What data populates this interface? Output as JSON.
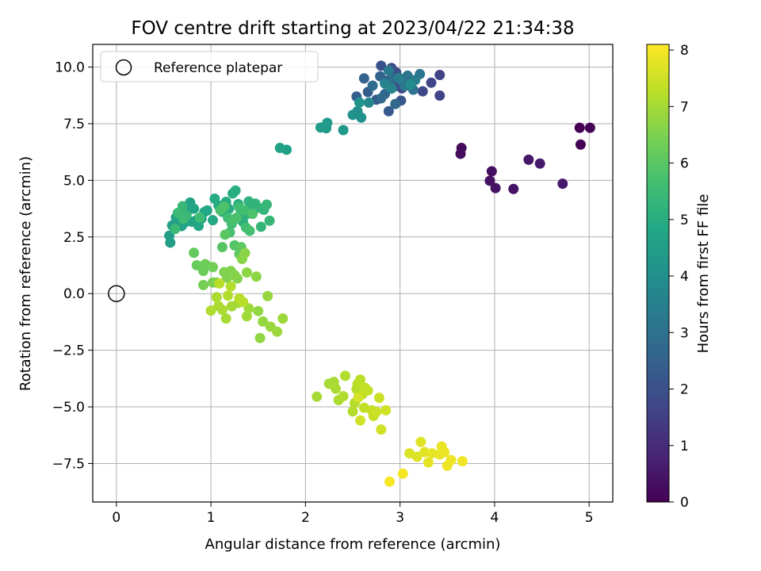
{
  "chart_data": {
    "type": "scatter",
    "title": "FOV centre drift starting at 2023/04/22 21:34:38",
    "xlabel": "Angular distance from reference (arcmin)",
    "ylabel": "Rotation from reference (arcmin)",
    "xlim": [
      -0.25,
      5.25
    ],
    "ylim": [
      -9.2,
      11.0
    ],
    "xticks": [
      0,
      1,
      2,
      3,
      4,
      5
    ],
    "yticks": [
      -7.5,
      -5.0,
      -2.5,
      0.0,
      2.5,
      5.0,
      7.5,
      10.0
    ],
    "xtick_labels": [
      "0",
      "1",
      "2",
      "3",
      "4",
      "5"
    ],
    "ytick_labels": [
      "−7.5",
      "−5.0",
      "−2.5",
      "0.0",
      "2.5",
      "5.0",
      "7.5",
      "10.0"
    ],
    "grid": true,
    "legend": {
      "placement": "upper-left",
      "entries": [
        "Reference platepar"
      ]
    },
    "colorbar": {
      "label": "Hours from first FF file",
      "colormap": "viridis",
      "range": [
        0,
        8.1
      ],
      "ticks": [
        0,
        1,
        2,
        3,
        4,
        5,
        6,
        7,
        8
      ],
      "tick_labels": [
        "0",
        "1",
        "2",
        "3",
        "4",
        "5",
        "6",
        "7",
        "8"
      ]
    },
    "reference": {
      "x": 0,
      "y": 0
    },
    "points": [
      {
        "x": 4.9,
        "y": 7.32,
        "t": 0.0
      },
      {
        "x": 5.01,
        "y": 7.32,
        "t": 0.02
      },
      {
        "x": 4.91,
        "y": 6.58,
        "t": 0.05
      },
      {
        "x": 3.65,
        "y": 6.43,
        "t": 0.25
      },
      {
        "x": 3.64,
        "y": 6.17,
        "t": 0.27
      },
      {
        "x": 3.97,
        "y": 5.4,
        "t": 0.35
      },
      {
        "x": 3.95,
        "y": 4.98,
        "t": 0.38
      },
      {
        "x": 4.01,
        "y": 4.66,
        "t": 0.4
      },
      {
        "x": 4.2,
        "y": 4.62,
        "t": 0.45
      },
      {
        "x": 4.36,
        "y": 5.91,
        "t": 0.5
      },
      {
        "x": 4.48,
        "y": 5.74,
        "t": 0.55
      },
      {
        "x": 4.72,
        "y": 4.85,
        "t": 0.6
      },
      {
        "x": 3.42,
        "y": 9.65,
        "t": 1.6
      },
      {
        "x": 3.42,
        "y": 8.74,
        "t": 1.65
      },
      {
        "x": 3.33,
        "y": 9.31,
        "t": 1.7
      },
      {
        "x": 3.24,
        "y": 8.93,
        "t": 1.75
      },
      {
        "x": 3.02,
        "y": 9.06,
        "t": 1.8
      },
      {
        "x": 2.96,
        "y": 9.76,
        "t": 1.85
      },
      {
        "x": 2.91,
        "y": 9.96,
        "t": 1.9
      },
      {
        "x": 2.8,
        "y": 10.06,
        "t": 2.0
      },
      {
        "x": 2.86,
        "y": 9.4,
        "t": 2.1
      },
      {
        "x": 2.94,
        "y": 9.15,
        "t": 2.15
      },
      {
        "x": 3.01,
        "y": 8.52,
        "t": 2.2
      },
      {
        "x": 2.88,
        "y": 8.05,
        "t": 2.25
      },
      {
        "x": 2.75,
        "y": 8.56,
        "t": 2.3
      },
      {
        "x": 2.66,
        "y": 8.9,
        "t": 2.35
      },
      {
        "x": 2.54,
        "y": 8.7,
        "t": 2.4
      },
      {
        "x": 2.62,
        "y": 9.5,
        "t": 2.5
      },
      {
        "x": 2.79,
        "y": 9.59,
        "t": 2.6
      },
      {
        "x": 2.84,
        "y": 8.81,
        "t": 2.7
      },
      {
        "x": 2.95,
        "y": 8.37,
        "t": 2.75
      },
      {
        "x": 2.8,
        "y": 8.62,
        "t": 2.8
      },
      {
        "x": 2.71,
        "y": 9.18,
        "t": 2.85
      },
      {
        "x": 2.92,
        "y": 9.5,
        "t": 2.9
      },
      {
        "x": 3.04,
        "y": 9.33,
        "t": 3.0
      },
      {
        "x": 3.08,
        "y": 9.62,
        "t": 3.05
      },
      {
        "x": 3.14,
        "y": 9.0,
        "t": 3.1
      },
      {
        "x": 3.21,
        "y": 9.69,
        "t": 3.15
      },
      {
        "x": 3.05,
        "y": 9.16,
        "t": 3.2
      },
      {
        "x": 2.88,
        "y": 9.85,
        "t": 3.3
      },
      {
        "x": 3.16,
        "y": 9.43,
        "t": 3.35
      },
      {
        "x": 2.99,
        "y": 9.52,
        "t": 3.45
      },
      {
        "x": 2.84,
        "y": 9.27,
        "t": 3.55
      },
      {
        "x": 2.91,
        "y": 9.05,
        "t": 3.7
      },
      {
        "x": 2.67,
        "y": 8.43,
        "t": 3.8
      },
      {
        "x": 3.11,
        "y": 9.23,
        "t": 3.9
      },
      {
        "x": 2.55,
        "y": 8.05,
        "t": 4.0
      },
      {
        "x": 2.59,
        "y": 7.77,
        "t": 4.05
      },
      {
        "x": 2.5,
        "y": 7.89,
        "t": 4.1
      },
      {
        "x": 2.57,
        "y": 8.44,
        "t": 4.15
      },
      {
        "x": 2.4,
        "y": 7.22,
        "t": 4.3
      },
      {
        "x": 2.23,
        "y": 7.54,
        "t": 4.35
      },
      {
        "x": 2.22,
        "y": 7.3,
        "t": 4.4
      },
      {
        "x": 2.16,
        "y": 7.33,
        "t": 4.45
      },
      {
        "x": 1.8,
        "y": 6.35,
        "t": 4.55
      },
      {
        "x": 1.73,
        "y": 6.43,
        "t": 4.6
      },
      {
        "x": 0.56,
        "y": 2.56,
        "t": 4.5
      },
      {
        "x": 0.57,
        "y": 2.25,
        "t": 4.52
      },
      {
        "x": 0.59,
        "y": 3.01,
        "t": 4.55
      },
      {
        "x": 0.63,
        "y": 3.36,
        "t": 4.57
      },
      {
        "x": 0.66,
        "y": 3.25,
        "t": 4.6
      },
      {
        "x": 0.69,
        "y": 2.98,
        "t": 4.62
      },
      {
        "x": 0.72,
        "y": 3.13,
        "t": 4.65
      },
      {
        "x": 0.75,
        "y": 3.62,
        "t": 4.67
      },
      {
        "x": 0.78,
        "y": 4.02,
        "t": 4.7
      },
      {
        "x": 0.8,
        "y": 3.17,
        "t": 4.72
      },
      {
        "x": 0.82,
        "y": 3.75,
        "t": 4.75
      },
      {
        "x": 0.85,
        "y": 3.25,
        "t": 4.77
      },
      {
        "x": 0.87,
        "y": 2.99,
        "t": 4.8
      },
      {
        "x": 0.9,
        "y": 3.31,
        "t": 4.82
      },
      {
        "x": 0.93,
        "y": 3.6,
        "t": 4.85
      },
      {
        "x": 0.96,
        "y": 3.67,
        "t": 4.87
      },
      {
        "x": 1.02,
        "y": 3.24,
        "t": 4.9
      },
      {
        "x": 1.04,
        "y": 4.19,
        "t": 4.92
      },
      {
        "x": 1.08,
        "y": 3.89,
        "t": 4.95
      },
      {
        "x": 1.12,
        "y": 3.61,
        "t": 4.97
      },
      {
        "x": 1.16,
        "y": 4.05,
        "t": 5.0
      },
      {
        "x": 1.19,
        "y": 3.74,
        "t": 5.02
      },
      {
        "x": 1.23,
        "y": 4.42,
        "t": 5.05
      },
      {
        "x": 1.26,
        "y": 4.55,
        "t": 5.07
      },
      {
        "x": 1.29,
        "y": 3.95,
        "t": 5.1
      },
      {
        "x": 1.31,
        "y": 3.45,
        "t": 5.12
      },
      {
        "x": 1.34,
        "y": 3.16,
        "t": 5.15
      },
      {
        "x": 1.38,
        "y": 3.51,
        "t": 5.17
      },
      {
        "x": 1.4,
        "y": 4.07,
        "t": 5.2
      },
      {
        "x": 1.43,
        "y": 3.79,
        "t": 5.22
      },
      {
        "x": 1.47,
        "y": 3.97,
        "t": 5.25
      },
      {
        "x": 1.5,
        "y": 3.79,
        "t": 5.27
      },
      {
        "x": 1.53,
        "y": 2.95,
        "t": 5.3
      },
      {
        "x": 1.56,
        "y": 3.7,
        "t": 5.32
      },
      {
        "x": 1.59,
        "y": 3.93,
        "t": 5.35
      },
      {
        "x": 1.62,
        "y": 3.22,
        "t": 5.37
      },
      {
        "x": 0.7,
        "y": 3.86,
        "t": 5.4
      },
      {
        "x": 0.74,
        "y": 3.45,
        "t": 5.42
      },
      {
        "x": 0.65,
        "y": 3.56,
        "t": 5.45
      },
      {
        "x": 0.62,
        "y": 2.85,
        "t": 5.47
      },
      {
        "x": 0.71,
        "y": 3.3,
        "t": 5.5
      },
      {
        "x": 0.88,
        "y": 3.35,
        "t": 5.52
      },
      {
        "x": 1.18,
        "y": 3.34,
        "t": 5.55
      },
      {
        "x": 1.22,
        "y": 3.08,
        "t": 5.57
      },
      {
        "x": 1.3,
        "y": 3.8,
        "t": 5.6
      },
      {
        "x": 1.35,
        "y": 3.68,
        "t": 5.62
      },
      {
        "x": 1.37,
        "y": 2.92,
        "t": 5.65
      },
      {
        "x": 1.41,
        "y": 2.77,
        "t": 5.67
      },
      {
        "x": 1.2,
        "y": 2.7,
        "t": 5.7
      },
      {
        "x": 1.24,
        "y": 3.24,
        "t": 5.72
      },
      {
        "x": 1.1,
        "y": 3.68,
        "t": 5.75
      },
      {
        "x": 1.27,
        "y": 3.35,
        "t": 5.77
      },
      {
        "x": 1.14,
        "y": 3.85,
        "t": 5.8
      },
      {
        "x": 1.44,
        "y": 3.52,
        "t": 5.82
      },
      {
        "x": 1.25,
        "y": 2.13,
        "t": 5.9
      },
      {
        "x": 1.12,
        "y": 2.05,
        "t": 5.95
      },
      {
        "x": 1.15,
        "y": 2.6,
        "t": 6.0
      },
      {
        "x": 1.32,
        "y": 2.05,
        "t": 6.05
      },
      {
        "x": 1.3,
        "y": 1.75,
        "t": 6.1
      },
      {
        "x": 0.82,
        "y": 1.8,
        "t": 6.15
      },
      {
        "x": 0.85,
        "y": 1.25,
        "t": 6.2
      },
      {
        "x": 0.92,
        "y": 1.0,
        "t": 6.25
      },
      {
        "x": 0.94,
        "y": 1.3,
        "t": 6.3
      },
      {
        "x": 1.02,
        "y": 1.17,
        "t": 6.35
      },
      {
        "x": 0.92,
        "y": 0.38,
        "t": 6.4
      },
      {
        "x": 1.02,
        "y": 0.49,
        "t": 6.45
      },
      {
        "x": 1.06,
        "y": 0.49,
        "t": 6.5
      },
      {
        "x": 1.14,
        "y": 0.95,
        "t": 6.52
      },
      {
        "x": 1.17,
        "y": 0.7,
        "t": 6.55
      },
      {
        "x": 1.21,
        "y": 1.0,
        "t": 6.57
      },
      {
        "x": 1.25,
        "y": 0.82,
        "t": 6.6
      },
      {
        "x": 1.28,
        "y": 0.67,
        "t": 6.62
      },
      {
        "x": 1.33,
        "y": 1.53,
        "t": 6.65
      },
      {
        "x": 1.36,
        "y": 1.79,
        "t": 6.67
      },
      {
        "x": 1.38,
        "y": 0.93,
        "t": 6.7
      },
      {
        "x": 1.48,
        "y": 0.75,
        "t": 6.72
      },
      {
        "x": 1.5,
        "y": -0.77,
        "t": 6.75
      },
      {
        "x": 1.52,
        "y": -1.96,
        "t": 6.77
      },
      {
        "x": 1.55,
        "y": -1.23,
        "t": 6.8
      },
      {
        "x": 1.6,
        "y": -0.11,
        "t": 6.82
      },
      {
        "x": 1.63,
        "y": -1.46,
        "t": 6.85
      },
      {
        "x": 1.7,
        "y": -1.68,
        "t": 6.87
      },
      {
        "x": 1.76,
        "y": -1.1,
        "t": 6.9
      },
      {
        "x": 1.4,
        "y": -0.65,
        "t": 6.92
      },
      {
        "x": 1.38,
        "y": -1.0,
        "t": 6.95
      },
      {
        "x": 1.29,
        "y": -0.41,
        "t": 6.97
      },
      {
        "x": 1.22,
        "y": -0.56,
        "t": 7.0
      },
      {
        "x": 1.16,
        "y": -1.1,
        "t": 7.02
      },
      {
        "x": 1.12,
        "y": -0.72,
        "t": 7.05
      },
      {
        "x": 1.08,
        "y": -0.55,
        "t": 7.07
      },
      {
        "x": 1.06,
        "y": -0.16,
        "t": 7.1
      },
      {
        "x": 1.0,
        "y": -0.75,
        "t": 7.12
      },
      {
        "x": 1.18,
        "y": -0.09,
        "t": 7.15
      },
      {
        "x": 1.21,
        "y": 0.32,
        "t": 7.17
      },
      {
        "x": 1.3,
        "y": -0.21,
        "t": 7.2
      },
      {
        "x": 1.34,
        "y": -0.37,
        "t": 7.22
      },
      {
        "x": 1.09,
        "y": 0.45,
        "t": 7.25
      },
      {
        "x": 2.12,
        "y": -4.55,
        "t": 7.0
      },
      {
        "x": 2.25,
        "y": -3.98,
        "t": 7.02
      },
      {
        "x": 2.3,
        "y": -3.9,
        "t": 7.05
      },
      {
        "x": 2.32,
        "y": -4.2,
        "t": 7.07
      },
      {
        "x": 2.35,
        "y": -4.7,
        "t": 7.1
      },
      {
        "x": 2.4,
        "y": -4.53,
        "t": 7.12
      },
      {
        "x": 2.42,
        "y": -3.63,
        "t": 7.15
      },
      {
        "x": 2.5,
        "y": -5.2,
        "t": 7.17
      },
      {
        "x": 2.52,
        "y": -4.83,
        "t": 7.2
      },
      {
        "x": 2.54,
        "y": -4.22,
        "t": 7.22
      },
      {
        "x": 2.55,
        "y": -3.99,
        "t": 7.25
      },
      {
        "x": 2.58,
        "y": -3.8,
        "t": 7.27
      },
      {
        "x": 2.6,
        "y": -4.45,
        "t": 7.3
      },
      {
        "x": 2.62,
        "y": -5.04,
        "t": 7.32
      },
      {
        "x": 2.63,
        "y": -4.16,
        "t": 7.35
      },
      {
        "x": 2.66,
        "y": -4.28,
        "t": 7.37
      },
      {
        "x": 2.7,
        "y": -5.15,
        "t": 7.4
      },
      {
        "x": 2.72,
        "y": -5.4,
        "t": 7.42
      },
      {
        "x": 2.75,
        "y": -5.22,
        "t": 7.45
      },
      {
        "x": 2.78,
        "y": -4.6,
        "t": 7.47
      },
      {
        "x": 2.8,
        "y": -6.0,
        "t": 7.5
      },
      {
        "x": 2.85,
        "y": -5.15,
        "t": 7.52
      },
      {
        "x": 2.58,
        "y": -5.6,
        "t": 7.55
      },
      {
        "x": 2.56,
        "y": -4.58,
        "t": 7.57
      },
      {
        "x": 3.1,
        "y": -7.05,
        "t": 7.65
      },
      {
        "x": 3.18,
        "y": -7.2,
        "t": 7.7
      },
      {
        "x": 3.22,
        "y": -6.55,
        "t": 7.72
      },
      {
        "x": 3.26,
        "y": -7.0,
        "t": 7.75
      },
      {
        "x": 3.3,
        "y": -7.45,
        "t": 7.78
      },
      {
        "x": 3.34,
        "y": -7.05,
        "t": 7.8
      },
      {
        "x": 3.42,
        "y": -7.1,
        "t": 7.82
      },
      {
        "x": 3.44,
        "y": -6.75,
        "t": 7.85
      },
      {
        "x": 3.47,
        "y": -7.0,
        "t": 7.88
      },
      {
        "x": 3.5,
        "y": -7.6,
        "t": 7.9
      },
      {
        "x": 3.54,
        "y": -7.35,
        "t": 7.92
      },
      {
        "x": 3.66,
        "y": -7.4,
        "t": 7.95
      },
      {
        "x": 3.03,
        "y": -7.95,
        "t": 8.0
      },
      {
        "x": 2.89,
        "y": -8.3,
        "t": 8.05
      }
    ]
  }
}
